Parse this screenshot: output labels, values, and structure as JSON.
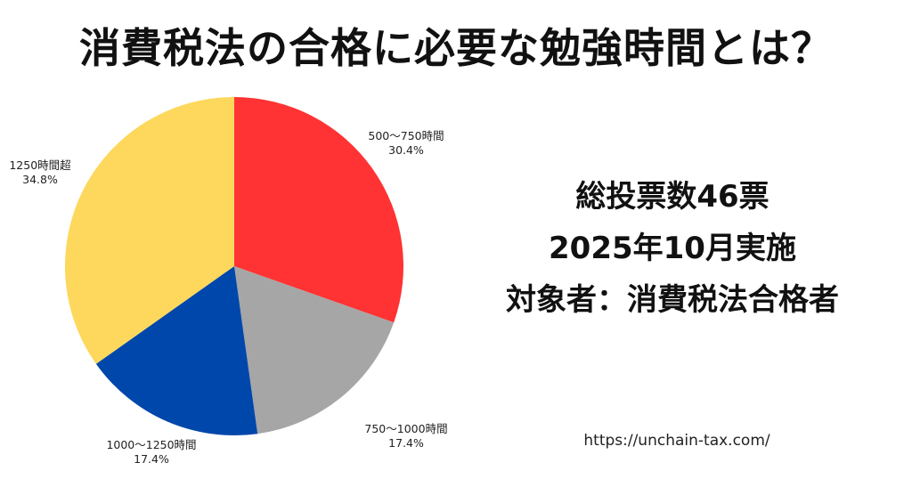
{
  "title": "消費税法の合格に必要な勉強時間とは？",
  "info": {
    "line1": "総投票数46票",
    "line2": "2025年10月実施",
    "line3": "対象者：消費税法合格者"
  },
  "footer": {
    "url": "https://unchain-tax.com/"
  },
  "colors": {
    "red": "#ff3333",
    "gray": "#a6a6a6",
    "blue": "#0047ab",
    "yellow": "#fdd85d"
  },
  "chart_data": {
    "type": "pie",
    "title": "",
    "slices": [
      {
        "label": "500〜750時間",
        "percent_label": "30.4%",
        "value": 30.4,
        "color": "#ff3333"
      },
      {
        "label": "750〜1000時間",
        "percent_label": "17.4%",
        "value": 17.4,
        "color": "#a6a6a6"
      },
      {
        "label": "1000〜1250時間",
        "percent_label": "17.4%",
        "value": 17.4,
        "color": "#0047ab"
      },
      {
        "label": "1250時間超",
        "percent_label": "34.8%",
        "value": 34.8,
        "color": "#fdd85d"
      }
    ]
  }
}
